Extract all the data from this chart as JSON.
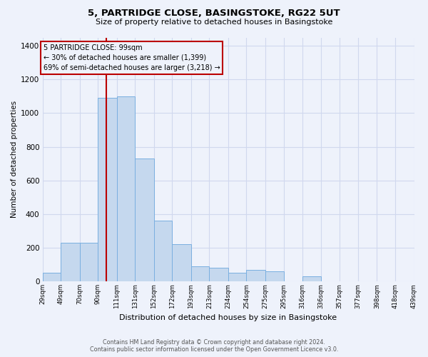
{
  "title": "5, PARTRIDGE CLOSE, BASINGSTOKE, RG22 5UT",
  "subtitle": "Size of property relative to detached houses in Basingstoke",
  "xlabel": "Distribution of detached houses by size in Basingstoke",
  "ylabel": "Number of detached properties",
  "footer_line1": "Contains HM Land Registry data © Crown copyright and database right 2024.",
  "footer_line2": "Contains public sector information licensed under the Open Government Licence v3.0.",
  "annotation_title": "5 PARTRIDGE CLOSE: 99sqm",
  "annotation_line1": "← 30% of detached houses are smaller (1,399)",
  "annotation_line2": "69% of semi-detached houses are larger (3,218) →",
  "bar_color": "#c5d8ee",
  "bar_edge_color": "#7aafe0",
  "vline_color": "#bb0000",
  "background_color": "#eef2fb",
  "grid_color": "#d0d8ee",
  "bins": [
    29,
    49,
    70,
    90,
    111,
    131,
    152,
    172,
    193,
    213,
    234,
    254,
    275,
    295,
    316,
    336,
    357,
    377,
    398,
    418,
    439
  ],
  "values": [
    50,
    230,
    230,
    1090,
    1100,
    730,
    360,
    220,
    90,
    80,
    50,
    70,
    60,
    0,
    30,
    0,
    0,
    0,
    0,
    0
  ],
  "vline_x": 99,
  "ylim": [
    0,
    1450
  ],
  "yticks": [
    0,
    200,
    400,
    600,
    800,
    1000,
    1200,
    1400
  ]
}
